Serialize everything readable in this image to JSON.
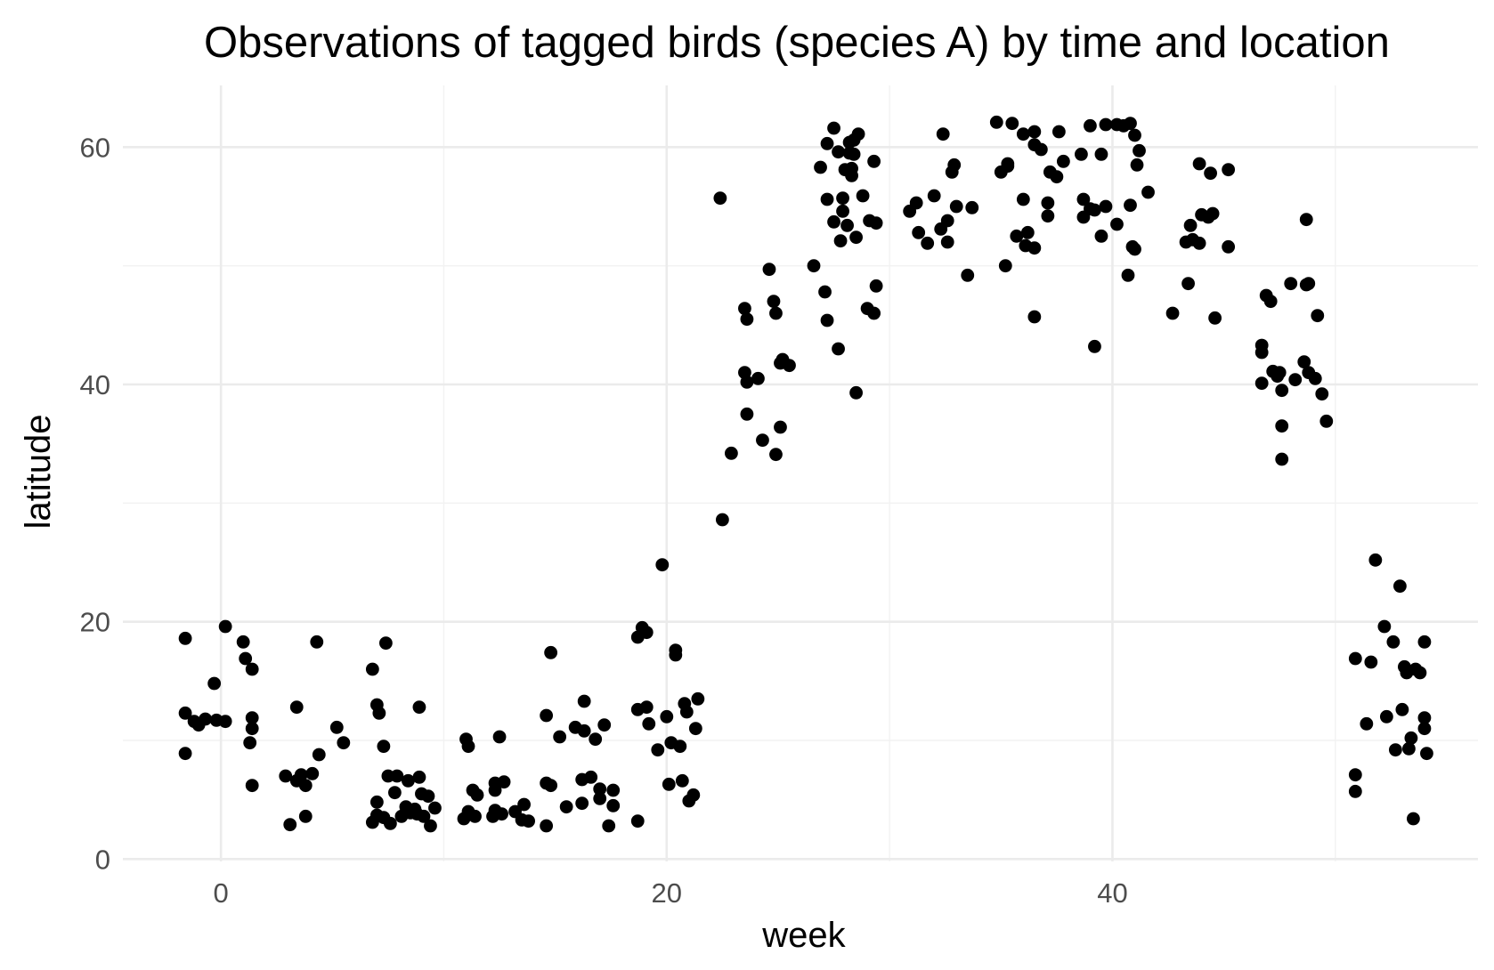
{
  "chart_data": {
    "type": "scatter",
    "title": "Observations of tagged birds (species A) by time and location",
    "xlabel": "week",
    "ylabel": "latitude",
    "xlim": [
      -4.4,
      56.4
    ],
    "ylim": [
      -0.2,
      65.2
    ],
    "x_ticks": [
      0,
      20,
      40
    ],
    "y_ticks": [
      0,
      20,
      40,
      60
    ],
    "x_minor_ticks": [
      10,
      30,
      50
    ],
    "y_minor_ticks": [
      10,
      30,
      50
    ],
    "grid": true,
    "point_color": "#000000",
    "points": [
      [
        -1.6,
        18.6
      ],
      [
        -1.6,
        12.3
      ],
      [
        -1.6,
        8.9
      ],
      [
        -1.2,
        11.6
      ],
      [
        -1.0,
        11.3
      ],
      [
        -0.7,
        11.8
      ],
      [
        -0.3,
        14.8
      ],
      [
        -0.2,
        11.7
      ],
      [
        0.2,
        11.6
      ],
      [
        0.2,
        19.6
      ],
      [
        1.0,
        18.3
      ],
      [
        1.1,
        16.9
      ],
      [
        1.3,
        9.8
      ],
      [
        1.4,
        11.9
      ],
      [
        1.4,
        11.0
      ],
      [
        1.4,
        6.2
      ],
      [
        1.4,
        16.0
      ],
      [
        2.9,
        7.0
      ],
      [
        3.1,
        2.9
      ],
      [
        3.4,
        6.6
      ],
      [
        3.4,
        12.8
      ],
      [
        3.6,
        7.1
      ],
      [
        3.8,
        3.6
      ],
      [
        3.8,
        6.2
      ],
      [
        4.1,
        7.2
      ],
      [
        4.3,
        18.3
      ],
      [
        4.4,
        8.8
      ],
      [
        5.2,
        11.1
      ],
      [
        5.5,
        9.8
      ],
      [
        6.8,
        16.0
      ],
      [
        6.8,
        3.1
      ],
      [
        7.0,
        3.7
      ],
      [
        7.0,
        4.8
      ],
      [
        7.0,
        13.0
      ],
      [
        7.1,
        12.3
      ],
      [
        7.3,
        9.5
      ],
      [
        7.3,
        3.5
      ],
      [
        7.4,
        18.2
      ],
      [
        7.5,
        7.0
      ],
      [
        7.6,
        3.0
      ],
      [
        7.8,
        5.6
      ],
      [
        7.9,
        7.0
      ],
      [
        8.1,
        3.6
      ],
      [
        8.3,
        4.4
      ],
      [
        8.4,
        6.6
      ],
      [
        8.5,
        3.9
      ],
      [
        8.7,
        4.2
      ],
      [
        8.8,
        3.8
      ],
      [
        8.9,
        6.9
      ],
      [
        8.9,
        12.8
      ],
      [
        9.0,
        5.5
      ],
      [
        9.1,
        3.6
      ],
      [
        9.3,
        5.3
      ],
      [
        9.4,
        2.8
      ],
      [
        9.6,
        4.3
      ],
      [
        10.9,
        3.4
      ],
      [
        11.0,
        10.1
      ],
      [
        11.1,
        4.0
      ],
      [
        11.1,
        9.5
      ],
      [
        11.3,
        5.8
      ],
      [
        11.4,
        3.6
      ],
      [
        11.5,
        5.4
      ],
      [
        12.2,
        3.6
      ],
      [
        12.3,
        4.1
      ],
      [
        12.3,
        5.8
      ],
      [
        12.5,
        10.3
      ],
      [
        12.3,
        6.4
      ],
      [
        12.6,
        3.8
      ],
      [
        12.7,
        6.5
      ],
      [
        13.2,
        4.0
      ],
      [
        13.5,
        3.3
      ],
      [
        13.6,
        4.6
      ],
      [
        13.8,
        3.2
      ],
      [
        14.6,
        12.1
      ],
      [
        14.6,
        2.8
      ],
      [
        14.6,
        6.4
      ],
      [
        14.8,
        6.2
      ],
      [
        14.8,
        17.4
      ],
      [
        15.2,
        10.3
      ],
      [
        15.5,
        4.4
      ],
      [
        15.9,
        11.1
      ],
      [
        16.2,
        6.7
      ],
      [
        16.2,
        4.7
      ],
      [
        16.3,
        10.8
      ],
      [
        16.3,
        13.3
      ],
      [
        16.6,
        6.9
      ],
      [
        16.8,
        10.1
      ],
      [
        17.0,
        5.1
      ],
      [
        17.0,
        5.9
      ],
      [
        17.2,
        11.3
      ],
      [
        17.4,
        2.8
      ],
      [
        17.6,
        4.5
      ],
      [
        17.6,
        5.8
      ],
      [
        18.7,
        3.2
      ],
      [
        18.7,
        12.6
      ],
      [
        18.7,
        18.7
      ],
      [
        18.9,
        19.5
      ],
      [
        19.1,
        19.1
      ],
      [
        19.1,
        12.8
      ],
      [
        19.2,
        11.4
      ],
      [
        19.6,
        9.2
      ],
      [
        19.8,
        24.8
      ],
      [
        20.0,
        12.0
      ],
      [
        20.1,
        6.3
      ],
      [
        20.2,
        9.8
      ],
      [
        20.4,
        17.2
      ],
      [
        20.4,
        17.6
      ],
      [
        20.6,
        9.5
      ],
      [
        20.7,
        6.6
      ],
      [
        20.8,
        13.1
      ],
      [
        20.9,
        12.4
      ],
      [
        21.0,
        4.9
      ],
      [
        21.2,
        5.4
      ],
      [
        21.3,
        11.0
      ],
      [
        21.4,
        13.5
      ],
      [
        22.4,
        55.7
      ],
      [
        22.5,
        28.6
      ],
      [
        22.9,
        34.2
      ],
      [
        23.5,
        46.4
      ],
      [
        23.5,
        41.0
      ],
      [
        23.6,
        40.2
      ],
      [
        23.6,
        45.5
      ],
      [
        23.6,
        37.5
      ],
      [
        24.1,
        40.5
      ],
      [
        24.3,
        35.3
      ],
      [
        24.6,
        49.7
      ],
      [
        24.8,
        47.0
      ],
      [
        24.9,
        46.0
      ],
      [
        24.9,
        34.1
      ],
      [
        25.1,
        41.8
      ],
      [
        25.1,
        36.4
      ],
      [
        25.2,
        42.1
      ],
      [
        25.5,
        41.6
      ],
      [
        26.6,
        50.0
      ],
      [
        26.9,
        58.3
      ],
      [
        27.1,
        47.8
      ],
      [
        27.2,
        55.6
      ],
      [
        27.2,
        45.4
      ],
      [
        27.2,
        60.3
      ],
      [
        27.5,
        53.7
      ],
      [
        27.5,
        61.6
      ],
      [
        27.7,
        59.6
      ],
      [
        27.7,
        43.0
      ],
      [
        27.8,
        52.1
      ],
      [
        27.9,
        55.7
      ],
      [
        27.9,
        54.6
      ],
      [
        28.0,
        58.1
      ],
      [
        28.1,
        53.4
      ],
      [
        28.2,
        59.5
      ],
      [
        28.2,
        60.4
      ],
      [
        28.3,
        58.2
      ],
      [
        28.3,
        57.6
      ],
      [
        28.4,
        59.4
      ],
      [
        28.4,
        60.6
      ],
      [
        28.5,
        52.4
      ],
      [
        28.5,
        39.3
      ],
      [
        28.6,
        61.1
      ],
      [
        28.8,
        55.9
      ],
      [
        29.0,
        46.4
      ],
      [
        29.1,
        53.8
      ],
      [
        29.3,
        46.0
      ],
      [
        29.3,
        58.8
      ],
      [
        29.4,
        53.6
      ],
      [
        29.4,
        48.3
      ],
      [
        30.9,
        54.6
      ],
      [
        31.2,
        55.3
      ],
      [
        31.3,
        52.8
      ],
      [
        31.7,
        51.9
      ],
      [
        32.0,
        55.9
      ],
      [
        32.3,
        53.1
      ],
      [
        32.4,
        61.1
      ],
      [
        32.6,
        53.8
      ],
      [
        32.6,
        52.0
      ],
      [
        32.8,
        57.9
      ],
      [
        32.9,
        58.5
      ],
      [
        33.0,
        55.0
      ],
      [
        33.5,
        49.2
      ],
      [
        33.7,
        54.9
      ],
      [
        34.8,
        62.1
      ],
      [
        35.0,
        57.9
      ],
      [
        35.2,
        50.0
      ],
      [
        35.3,
        58.4
      ],
      [
        35.3,
        58.6
      ],
      [
        35.5,
        62.0
      ],
      [
        35.7,
        52.5
      ],
      [
        36.0,
        61.1
      ],
      [
        36.0,
        55.6
      ],
      [
        36.1,
        51.7
      ],
      [
        36.2,
        52.8
      ],
      [
        36.5,
        61.3
      ],
      [
        36.5,
        60.2
      ],
      [
        36.5,
        51.5
      ],
      [
        36.5,
        45.7
      ],
      [
        36.8,
        59.8
      ],
      [
        37.1,
        55.3
      ],
      [
        37.1,
        54.2
      ],
      [
        37.2,
        57.9
      ],
      [
        37.5,
        57.5
      ],
      [
        37.6,
        61.3
      ],
      [
        37.8,
        58.8
      ],
      [
        38.6,
        59.4
      ],
      [
        38.7,
        55.6
      ],
      [
        38.7,
        54.1
      ],
      [
        39.0,
        54.8
      ],
      [
        39.0,
        61.8
      ],
      [
        39.2,
        54.7
      ],
      [
        39.2,
        43.2
      ],
      [
        39.5,
        52.5
      ],
      [
        39.5,
        59.4
      ],
      [
        39.7,
        61.9
      ],
      [
        39.7,
        55.0
      ],
      [
        40.2,
        53.5
      ],
      [
        40.2,
        61.9
      ],
      [
        40.5,
        61.8
      ],
      [
        40.7,
        49.2
      ],
      [
        40.8,
        62.0
      ],
      [
        40.8,
        55.1
      ],
      [
        40.9,
        51.6
      ],
      [
        41.0,
        61.0
      ],
      [
        41.0,
        51.4
      ],
      [
        41.1,
        58.5
      ],
      [
        41.2,
        59.7
      ],
      [
        41.6,
        56.2
      ],
      [
        42.7,
        46.0
      ],
      [
        43.3,
        52.0
      ],
      [
        43.4,
        48.5
      ],
      [
        43.5,
        53.4
      ],
      [
        43.6,
        52.2
      ],
      [
        43.9,
        58.6
      ],
      [
        43.9,
        51.9
      ],
      [
        44.0,
        54.3
      ],
      [
        44.3,
        54.1
      ],
      [
        44.4,
        57.8
      ],
      [
        44.5,
        54.4
      ],
      [
        44.6,
        45.6
      ],
      [
        45.2,
        58.1
      ],
      [
        45.2,
        51.6
      ],
      [
        46.7,
        43.3
      ],
      [
        46.7,
        42.7
      ],
      [
        46.7,
        40.1
      ],
      [
        46.9,
        47.5
      ],
      [
        47.1,
        47.0
      ],
      [
        47.2,
        41.1
      ],
      [
        47.4,
        40.7
      ],
      [
        47.5,
        41.0
      ],
      [
        47.6,
        39.5
      ],
      [
        47.6,
        36.5
      ],
      [
        47.6,
        33.7
      ],
      [
        48.0,
        48.5
      ],
      [
        48.2,
        40.4
      ],
      [
        48.6,
        41.9
      ],
      [
        48.7,
        53.9
      ],
      [
        48.7,
        48.4
      ],
      [
        48.8,
        48.5
      ],
      [
        48.8,
        41.0
      ],
      [
        49.1,
        40.5
      ],
      [
        49.2,
        45.8
      ],
      [
        49.4,
        39.2
      ],
      [
        49.6,
        36.9
      ],
      [
        50.9,
        16.9
      ],
      [
        50.9,
        7.1
      ],
      [
        50.9,
        5.7
      ],
      [
        51.4,
        11.4
      ],
      [
        51.6,
        16.6
      ],
      [
        51.8,
        25.2
      ],
      [
        52.2,
        19.6
      ],
      [
        52.3,
        12.0
      ],
      [
        52.6,
        18.3
      ],
      [
        52.7,
        9.2
      ],
      [
        52.9,
        23.0
      ],
      [
        53.0,
        12.6
      ],
      [
        53.1,
        16.2
      ],
      [
        53.2,
        15.7
      ],
      [
        53.3,
        9.3
      ],
      [
        53.4,
        10.2
      ],
      [
        53.5,
        3.4
      ],
      [
        53.6,
        16.0
      ],
      [
        53.8,
        15.7
      ],
      [
        54.0,
        18.3
      ],
      [
        54.0,
        11.9
      ],
      [
        54.0,
        11.0
      ],
      [
        54.1,
        8.9
      ]
    ]
  }
}
